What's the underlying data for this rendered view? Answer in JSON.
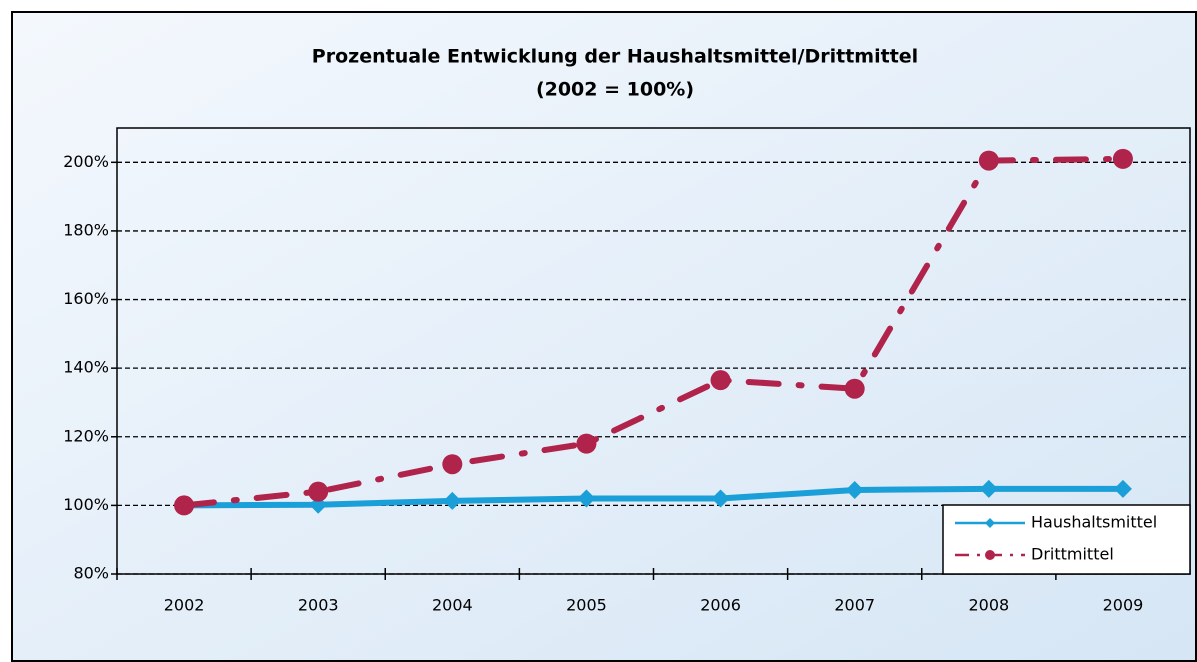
{
  "chart_data": {
    "type": "line",
    "title": [
      "Prozentuale Entwicklung der Haushaltsmittel/Drittmittel",
      "(2002 = 100%)"
    ],
    "categories": [
      "2002",
      "2003",
      "2004",
      "2005",
      "2006",
      "2007",
      "2008",
      "2009"
    ],
    "series": [
      {
        "name": "Haushaltsmittel",
        "color": "#1a9fd8",
        "marker": "diamond",
        "dash": "solid",
        "values": [
          100,
          100.2,
          101.3,
          102,
          102,
          104.5,
          104.8,
          104.8
        ]
      },
      {
        "name": "Drittmittel",
        "color": "#b0234a",
        "marker": "circle",
        "dash": "dashdot",
        "values": [
          100,
          104,
          112,
          118,
          136.5,
          134,
          200.5,
          201
        ]
      }
    ],
    "ylim": [
      80,
      210
    ],
    "yticks": [
      {
        "value": 80,
        "label": "80%"
      },
      {
        "value": 100,
        "label": "100%"
      },
      {
        "value": 120,
        "label": "120%"
      },
      {
        "value": 140,
        "label": "140%"
      },
      {
        "value": 160,
        "label": "160%"
      },
      {
        "value": 180,
        "label": "180%"
      },
      {
        "value": 200,
        "label": "200%"
      }
    ],
    "grid": true,
    "legend": "lower right"
  }
}
